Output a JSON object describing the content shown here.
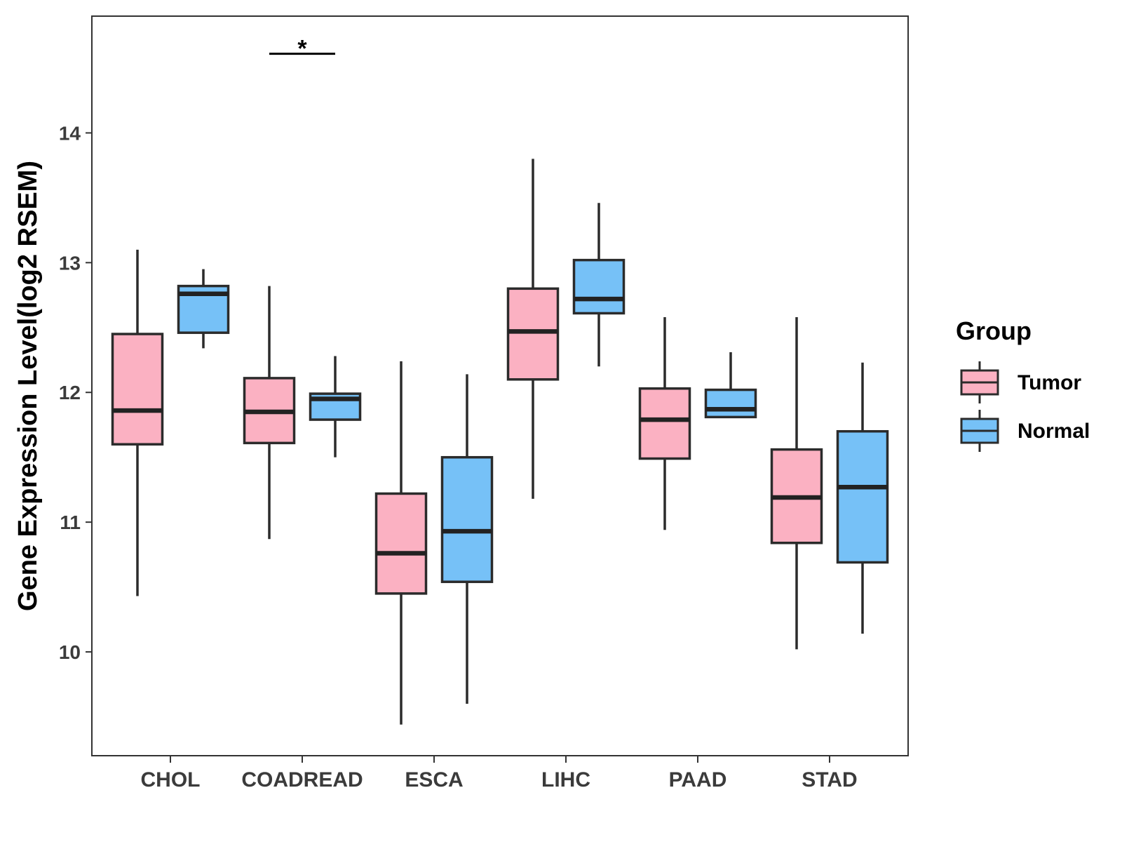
{
  "chart_data": {
    "type": "boxplot",
    "title": "",
    "xlabel": "",
    "ylabel": "Gene Expression Level(log2 RSEM)",
    "ylim": [
      9.2,
      14.9
    ],
    "yticks": [
      10,
      11,
      12,
      13,
      14
    ],
    "ytick_labels": [
      "10",
      "11",
      "12",
      "13",
      "14"
    ],
    "grid": false,
    "categories": [
      "CHOL",
      "COADREAD",
      "ESCA",
      "LIHC",
      "PAAD",
      "STAD"
    ],
    "legend": {
      "title": "Group",
      "placement": "right"
    },
    "series": [
      {
        "name": "Tumor",
        "color": "#FBB1C2",
        "boxes": [
          {
            "min": 10.43,
            "q1": 11.6,
            "median": 11.86,
            "q3": 12.45,
            "max": 13.1
          },
          {
            "min": 10.87,
            "q1": 11.61,
            "median": 11.85,
            "q3": 12.11,
            "max": 12.82
          },
          {
            "min": 9.44,
            "q1": 10.45,
            "median": 10.76,
            "q3": 11.22,
            "max": 12.24
          },
          {
            "min": 11.18,
            "q1": 12.1,
            "median": 12.47,
            "q3": 12.8,
            "max": 13.8
          },
          {
            "min": 10.94,
            "q1": 11.49,
            "median": 11.79,
            "q3": 12.03,
            "max": 12.58
          },
          {
            "min": 10.02,
            "q1": 10.84,
            "median": 11.19,
            "q3": 11.56,
            "max": 12.58
          }
        ]
      },
      {
        "name": "Normal",
        "color": "#76C1F7",
        "boxes": [
          {
            "min": 12.34,
            "q1": 12.46,
            "median": 12.76,
            "q3": 12.82,
            "max": 12.95
          },
          {
            "min": 11.5,
            "q1": 11.79,
            "median": 11.95,
            "q3": 11.99,
            "max": 12.28
          },
          {
            "min": 9.6,
            "q1": 10.54,
            "median": 10.93,
            "q3": 11.5,
            "max": 12.14
          },
          {
            "min": 12.2,
            "q1": 12.61,
            "median": 12.72,
            "q3": 13.02,
            "max": 13.46
          },
          {
            "min": 11.81,
            "q1": 11.81,
            "median": 11.87,
            "q3": 12.02,
            "max": 12.31
          },
          {
            "min": 10.14,
            "q1": 10.69,
            "median": 11.27,
            "q3": 11.7,
            "max": 12.23
          }
        ]
      }
    ],
    "annotations": [
      {
        "category": "COADREAD",
        "text": "*",
        "y": 14.61
      }
    ]
  }
}
